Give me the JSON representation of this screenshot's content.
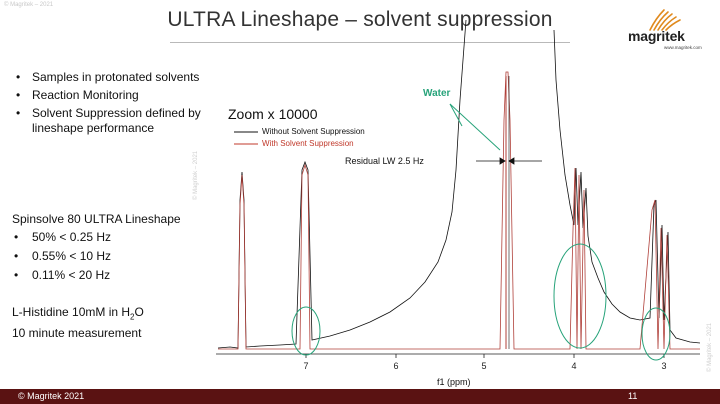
{
  "watermark": "© Magritek – 2021",
  "title": "ULTRA Lineshape – solvent suppression",
  "logo": {
    "name": "magritek",
    "url": "www.magritek.com",
    "icon": "magritek-logo-icon"
  },
  "bullets": [
    "Samples in protonated solvents",
    "Reaction Monitoring",
    "Solvent Suppression defined by lineshape performance"
  ],
  "spec": {
    "title": "Spinsolve 80 ULTRA Lineshape",
    "items": [
      "50% < 0.25 Hz",
      "0.55% < 10 Hz",
      "0.11% < 20 Hz"
    ]
  },
  "sample": {
    "line1_prefix": "L-Histidine 10mM in H",
    "line1_sub": "2",
    "line1_suffix": "O",
    "line2": "10 minute measurement"
  },
  "zoom_label": "Zoom x 10000",
  "legend": {
    "without": "Without Solvent Suppression",
    "with": "With Solvent Suppression",
    "without_color": "#111111",
    "with_color": "#c0392b"
  },
  "residual_label": "Residual LW 2.5 Hz",
  "water_label": "Water",
  "annotation_color": "#27a37a",
  "axis": {
    "xlabel": "f1 (ppm)",
    "ticks": [
      "7",
      "6",
      "5",
      "4",
      "3"
    ]
  },
  "footer": {
    "copyright": "© Magritek 2021",
    "page": "11",
    "background": "#5a1212"
  }
}
